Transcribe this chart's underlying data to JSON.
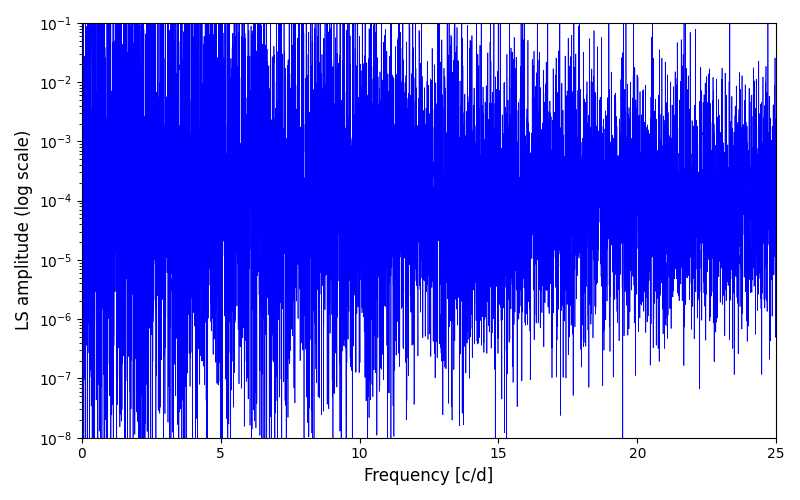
{
  "title": "",
  "xlabel": "Frequency [c/d]",
  "ylabel": "LS amplitude (log scale)",
  "line_color": "#0000ff",
  "xlim": [
    0,
    25
  ],
  "ylim_log": [
    -8,
    -1
  ],
  "freq_min": 0.0,
  "freq_max": 25.0,
  "n_points": 8000,
  "seed": 17,
  "background_color": "#ffffff",
  "figsize": [
    8.0,
    5.0
  ],
  "dpi": 100
}
